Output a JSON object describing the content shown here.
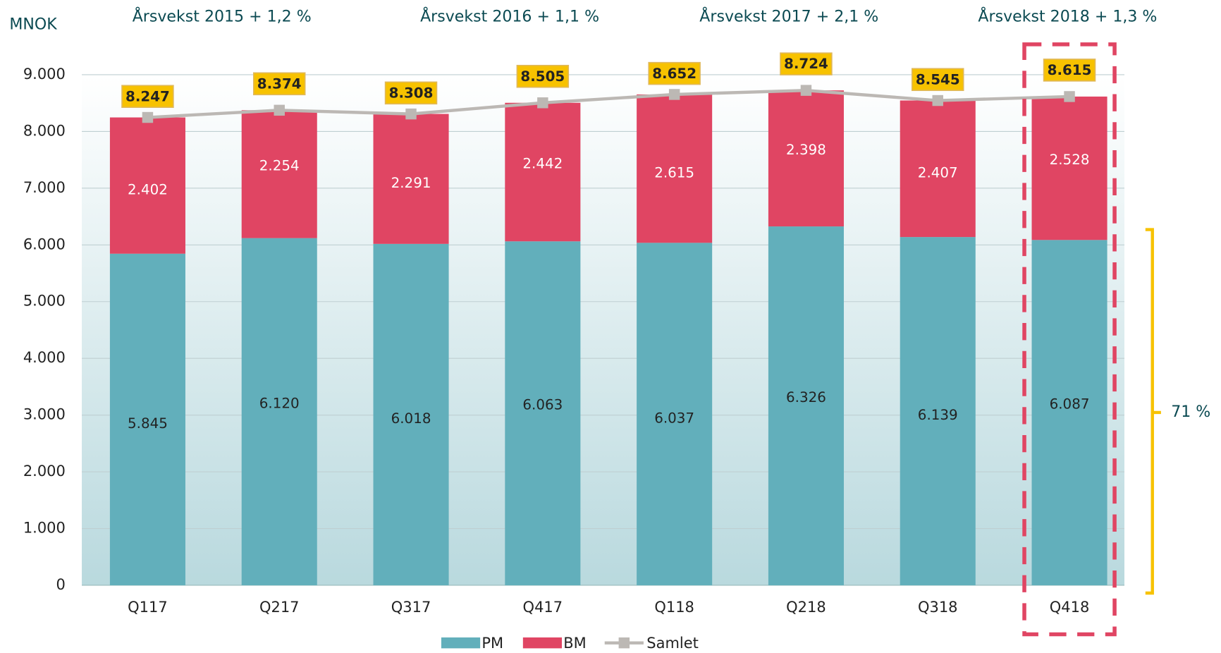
{
  "chart_data": {
    "type": "bar",
    "y_label": "MNOK",
    "annotations": [
      "Årsvekst 2015 + 1,2 %",
      "Årsvekst 2016 + 1,1 %",
      "Årsvekst 2017 + 2,1 %",
      "Årsvekst 2018 + 1,3 %"
    ],
    "bracket_label": "71 %",
    "categories": [
      "Q117",
      "Q217",
      "Q317",
      "Q417",
      "Q118",
      "Q218",
      "Q318",
      "Q418"
    ],
    "stacked": true,
    "series": [
      {
        "name": "PM",
        "color": "#62afbb",
        "values": [
          5845,
          6120,
          6018,
          6063,
          6037,
          6326,
          6139,
          6087
        ],
        "value_labels": [
          "5.845",
          "6.120",
          "6.018",
          "6.063",
          "6.037",
          "6.326",
          "6.139",
          "6.087"
        ]
      },
      {
        "name": "BM",
        "color": "#e04563",
        "values": [
          2402,
          2254,
          2291,
          2442,
          2615,
          2398,
          2407,
          2528
        ],
        "value_labels": [
          "2.402",
          "2.254",
          "2.291",
          "2.442",
          "2.615",
          "2.398",
          "2.407",
          "2.528"
        ]
      },
      {
        "name": "Samlet",
        "type": "line",
        "color": "#bcb8b4",
        "values": [
          8247,
          8374,
          8308,
          8505,
          8652,
          8724,
          8545,
          8615
        ],
        "value_labels": [
          "8.247",
          "8.374",
          "8.308",
          "8.505",
          "8.652",
          "8.724",
          "8.545",
          "8.615"
        ]
      }
    ],
    "ylim": [
      0,
      9000
    ],
    "yticks": [
      0,
      {
        "value": 1000,
        "label": "1.000"
      },
      {
        "value": 2000,
        "label": "2.000"
      },
      {
        "value": 3000,
        "label": "3.000"
      },
      {
        "value": 4000,
        "label": "4.000"
      },
      {
        "value": 5000,
        "label": "5.000"
      },
      {
        "value": 6000,
        "label": "6.000"
      },
      {
        "value": 7000,
        "label": "7.000"
      },
      {
        "value": 8000,
        "label": "8.000"
      },
      {
        "value": 9000,
        "label": "9.000"
      }
    ],
    "grid": true,
    "legend": "bottom"
  }
}
